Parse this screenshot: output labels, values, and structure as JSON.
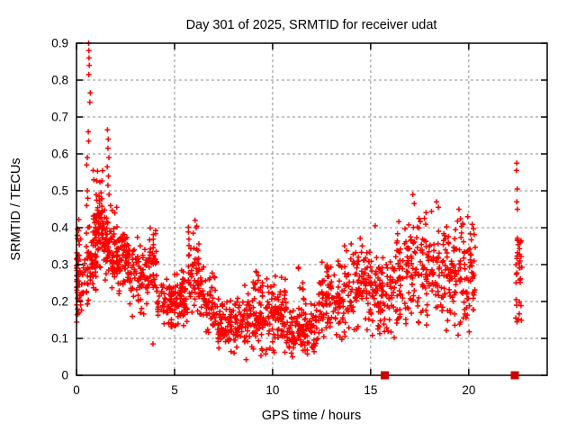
{
  "chart_data": {
    "type": "scatter",
    "title": "Day 301 of 2025, SRMTID for receiver udat",
    "xlabel": "GPS time / hours",
    "ylabel": "SRMTID / TECUs",
    "xlim": [
      0,
      24
    ],
    "ylim": [
      0,
      0.9
    ],
    "xticks": [
      0,
      5,
      10,
      15,
      20
    ],
    "xtick_labels": [
      "0",
      "5",
      "10",
      "15",
      "20"
    ],
    "yticks": [
      0,
      0.1,
      0.2,
      0.3,
      0.4,
      0.5,
      0.6,
      0.7,
      0.8,
      0.9
    ],
    "ytick_labels": [
      "0",
      "0.1",
      "0.2",
      "0.3",
      "0.4",
      "0.5",
      "0.6",
      "0.7",
      "0.8",
      "0.9"
    ],
    "grid": true,
    "legend": "none",
    "marker": "plus",
    "marker_color": "#ff0000",
    "seed": 301,
    "description": "Dense scatter of red plus markers: SRMTID high (0.3-0.9) near 0-2h, decaying to a minimum band (0.03-0.2) around 8-12h, rising again to 0.1-0.47 by 16-20h; data gap 20.4-22.3h; isolated vertical cluster at ~22.4-22.75h spanning 0.14-0.575; two red square markers on the x-axis at y=0.",
    "notable_points": [
      [
        0.62,
        0.9
      ],
      [
        0.63,
        0.88
      ],
      [
        0.64,
        0.86
      ],
      [
        0.65,
        0.84
      ],
      [
        0.63,
        0.815
      ],
      [
        0.7,
        0.765
      ],
      [
        0.68,
        0.74
      ],
      [
        0.6,
        0.66
      ],
      [
        0.62,
        0.635
      ],
      [
        0.55,
        0.59
      ],
      [
        0.52,
        0.57
      ],
      [
        0.85,
        0.555
      ],
      [
        0.88,
        0.53
      ],
      [
        0.55,
        0.5
      ],
      [
        0.58,
        0.48
      ],
      [
        0.52,
        0.46
      ],
      [
        1.58,
        0.665
      ],
      [
        1.62,
        0.64
      ],
      [
        1.6,
        0.615
      ],
      [
        1.65,
        0.59
      ],
      [
        1.57,
        0.565
      ],
      [
        1.63,
        0.54
      ],
      [
        1.6,
        0.515
      ],
      [
        1.66,
        0.49
      ],
      [
        2.05,
        0.455
      ],
      [
        1.95,
        0.44
      ],
      [
        3.9,
        0.085
      ],
      [
        6.05,
        0.42
      ],
      [
        6.1,
        0.4
      ],
      [
        5.95,
        0.385
      ],
      [
        15.23,
        0.405
      ],
      [
        17.15,
        0.49
      ],
      [
        17.22,
        0.465
      ],
      [
        18.35,
        0.47
      ],
      [
        18.45,
        0.455
      ],
      [
        19.5,
        0.45
      ],
      [
        19.95,
        0.43
      ],
      [
        22.45,
        0.575
      ],
      [
        22.43,
        0.555
      ],
      [
        22.47,
        0.505
      ],
      [
        22.45,
        0.47
      ],
      [
        22.48,
        0.45
      ],
      [
        22.42,
        0.205
      ],
      [
        22.44,
        0.19
      ],
      [
        22.4,
        0.155
      ],
      [
        22.46,
        0.145
      ]
    ],
    "density_clusters": [
      [
        0.0,
        0.12,
        0.13,
        0.45,
        45
      ],
      [
        0.1,
        0.6,
        0.15,
        0.43,
        40
      ],
      [
        0.6,
        1.0,
        0.18,
        0.45,
        50
      ],
      [
        0.9,
        1.35,
        0.27,
        0.56,
        70
      ],
      [
        1.35,
        1.85,
        0.22,
        0.5,
        60
      ],
      [
        1.85,
        2.7,
        0.22,
        0.42,
        90
      ],
      [
        2.7,
        3.6,
        0.14,
        0.38,
        70
      ],
      [
        3.6,
        4.1,
        0.14,
        0.43,
        50
      ],
      [
        4.1,
        5.65,
        0.12,
        0.27,
        115
      ],
      [
        5.0,
        5.6,
        0.14,
        0.32,
        20
      ],
      [
        5.7,
        6.35,
        0.14,
        0.41,
        60
      ],
      [
        6.35,
        7.2,
        0.1,
        0.3,
        60
      ],
      [
        7.2,
        8.3,
        0.05,
        0.22,
        95
      ],
      [
        8.3,
        9.7,
        0.04,
        0.26,
        110
      ],
      [
        9.0,
        9.3,
        0.2,
        0.31,
        10
      ],
      [
        9.7,
        10.7,
        0.04,
        0.28,
        90
      ],
      [
        10.7,
        12.3,
        0.03,
        0.2,
        130
      ],
      [
        11.3,
        11.7,
        0.17,
        0.3,
        10
      ],
      [
        12.3,
        13.6,
        0.08,
        0.32,
        110
      ],
      [
        13.6,
        15.1,
        0.1,
        0.38,
        120
      ],
      [
        15.1,
        16.2,
        0.1,
        0.35,
        90
      ],
      [
        16.2,
        17.6,
        0.1,
        0.45,
        110
      ],
      [
        17.6,
        19.0,
        0.12,
        0.46,
        110
      ],
      [
        19.0,
        20.35,
        0.1,
        0.44,
        110
      ],
      [
        22.4,
        22.75,
        0.22,
        0.43,
        26
      ],
      [
        22.42,
        22.7,
        0.14,
        0.21,
        6
      ]
    ],
    "zero_markers": {
      "shape": "square",
      "color": "#cc0000",
      "points": [
        [
          15.72,
          0
        ],
        [
          22.35,
          0
        ]
      ]
    }
  }
}
